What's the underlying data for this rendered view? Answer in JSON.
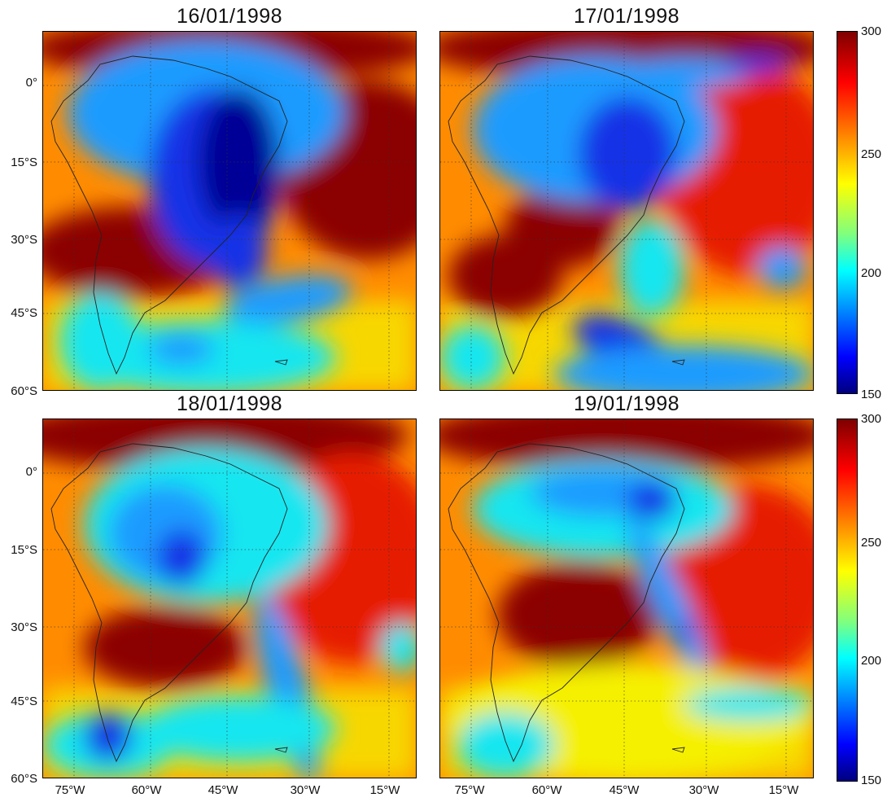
{
  "panels": [
    {
      "title": "16/01/1998"
    },
    {
      "title": "17/01/1998"
    },
    {
      "title": "18/01/1998"
    },
    {
      "title": "19/01/1998"
    }
  ],
  "y_axis_labels": [
    "0°",
    "15°S",
    "30°S",
    "45°S",
    "60°S"
  ],
  "x_axis_labels": [
    "75°W",
    "60°W",
    "45°W",
    "30°W",
    "15°W"
  ],
  "colorbar": {
    "ticks": [
      "300",
      "250",
      "200",
      "150"
    ],
    "range": [
      150,
      300
    ],
    "colormap": "jet"
  },
  "colors": {
    "dark_red": "#8b0000",
    "red": "#e61e00",
    "orange": "#ff8c00",
    "yellow": "#f5f000",
    "cyan": "#19e6f0",
    "light_blue": "#1e9bff",
    "blue": "#1432e6",
    "dark_blue": "#000096"
  }
}
